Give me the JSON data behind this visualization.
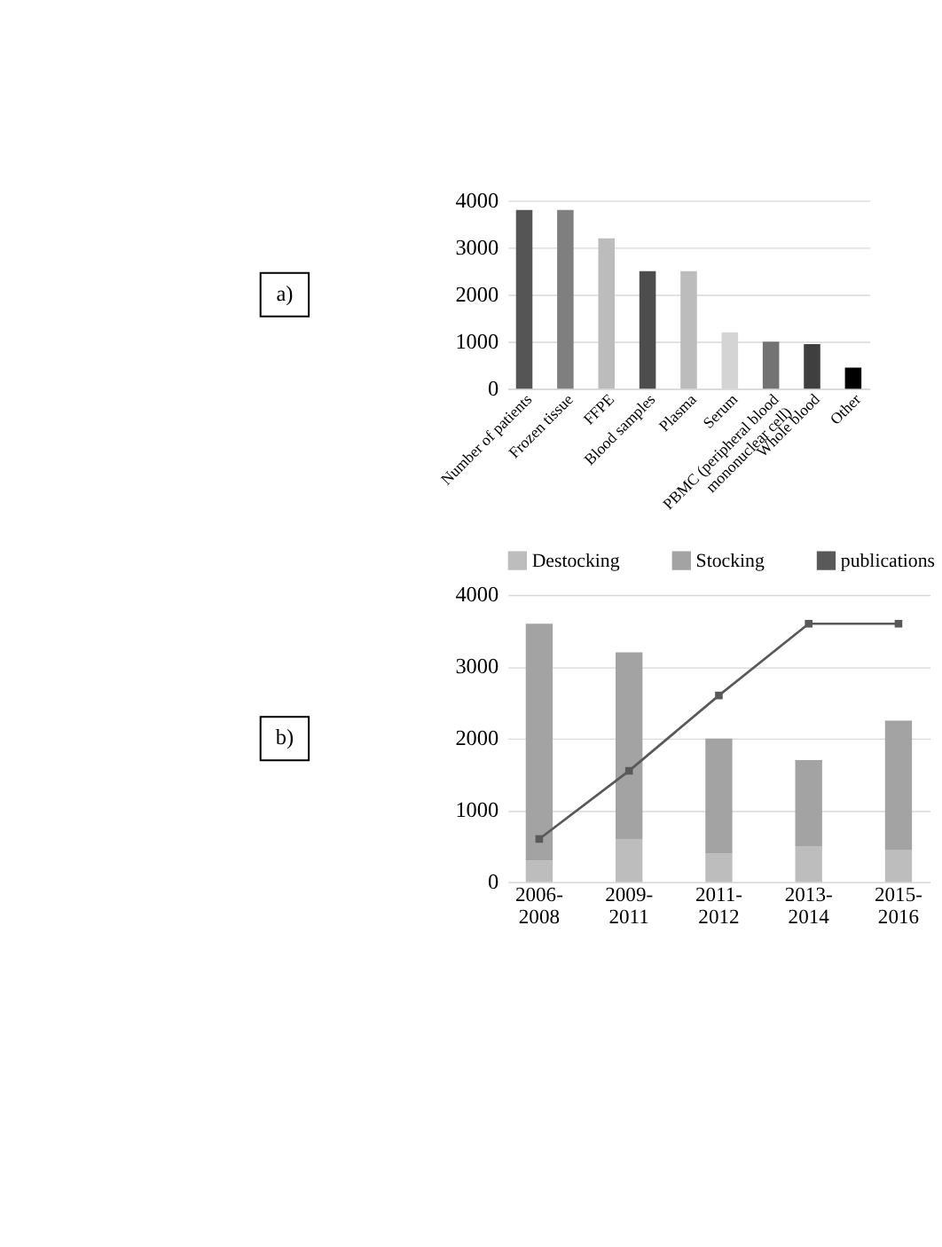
{
  "chart_data": [
    {
      "type": "bar",
      "annotations": [
        "a)"
      ],
      "categories": [
        "Number of patients",
        "Frozen tissue",
        "FFPE",
        "Blood samples",
        "Plasma",
        "Serum",
        "PBMC (peripheral blood\nmononuclear cell)",
        "Whole blood",
        "Other"
      ],
      "values": [
        3800,
        3800,
        3200,
        2500,
        2500,
        1200,
        1000,
        950,
        450
      ],
      "colors": [
        "#555555",
        "#7f7f7f",
        "#bcbcbc",
        "#4d4d4d",
        "#bcbcbc",
        "#d4d4d4",
        "#737373",
        "#3f3f3f",
        "#000000"
      ],
      "ylim": [
        0,
        4000
      ],
      "yticks": [
        0,
        1000,
        2000,
        3000,
        4000
      ],
      "grid": "y",
      "legend": false
    },
    {
      "type": "bar",
      "annotations": [
        "b)"
      ],
      "categories": [
        "2006-\n2008",
        "2009-\n2011",
        "2011-\n2012",
        "2013-\n2014",
        "2015-\n2016"
      ],
      "stacked": true,
      "series": [
        {
          "name": "Destocking",
          "color": "#bdbdbd",
          "values": [
            300,
            600,
            400,
            500,
            450
          ]
        },
        {
          "name": "Stocking",
          "color": "#a3a3a3",
          "values": [
            3300,
            2600,
            1600,
            1200,
            1800
          ]
        },
        {
          "name": "publications",
          "type": "line",
          "color": "#595959",
          "marker": "square",
          "values": [
            600,
            1550,
            2600,
            3600,
            3600
          ]
        }
      ],
      "ylim": [
        0,
        4000
      ],
      "yticks": [
        0,
        1000,
        2000,
        3000,
        4000
      ],
      "grid": "y",
      "legend": "top"
    }
  ]
}
